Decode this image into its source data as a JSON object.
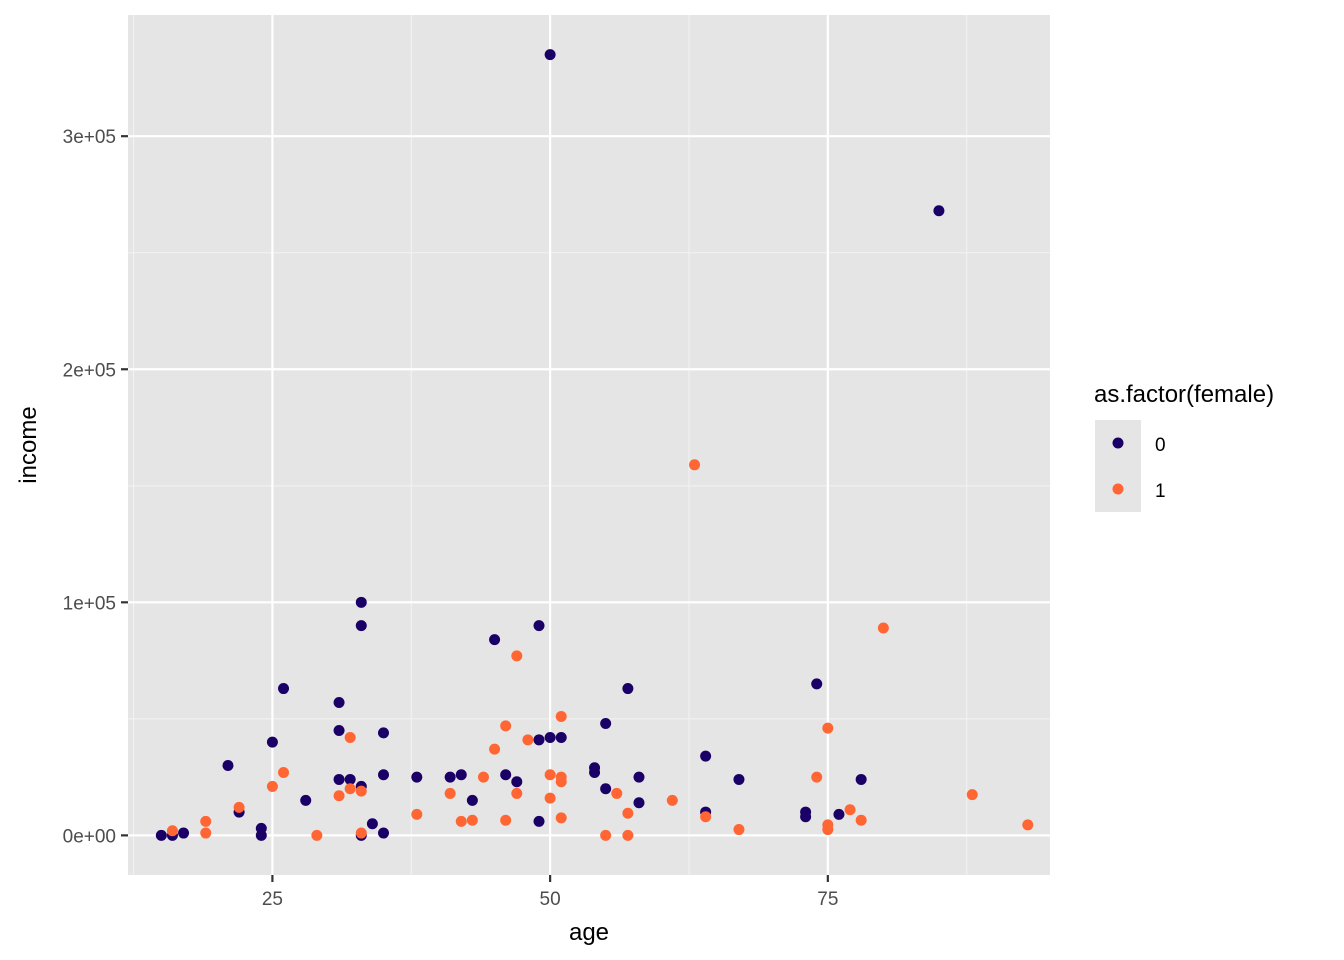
{
  "chart_data": {
    "type": "scatter",
    "xlabel": "age",
    "ylabel": "income",
    "xlim": [
      12,
      95
    ],
    "ylim": [
      -17000,
      352000
    ],
    "x_ticks": [
      25,
      50,
      75
    ],
    "x_tick_labels": [
      "25",
      "50",
      "75"
    ],
    "x_minor_ticks": [
      12.5,
      37.5,
      62.5,
      87.5
    ],
    "y_ticks": [
      0,
      100000,
      200000,
      300000
    ],
    "y_tick_labels": [
      "0e+00",
      "1e+05",
      "2e+05",
      "3e+05"
    ],
    "y_minor_ticks": [
      50000,
      150000,
      250000
    ],
    "grid": true,
    "legend": {
      "title": "as.factor(female)",
      "placement": "right"
    },
    "series": [
      {
        "name": "0",
        "color": "#1a0066",
        "points": [
          [
            15,
            0
          ],
          [
            16,
            0
          ],
          [
            17,
            1000
          ],
          [
            21,
            30000
          ],
          [
            22,
            10000
          ],
          [
            24,
            3000
          ],
          [
            24,
            0
          ],
          [
            25,
            40000
          ],
          [
            26,
            63000
          ],
          [
            28,
            15000
          ],
          [
            31,
            57000
          ],
          [
            31,
            45000
          ],
          [
            31,
            24000
          ],
          [
            32,
            24000
          ],
          [
            33,
            100000
          ],
          [
            33,
            90000
          ],
          [
            33,
            21000
          ],
          [
            33,
            0
          ],
          [
            34,
            5000
          ],
          [
            35,
            44000
          ],
          [
            35,
            26000
          ],
          [
            35,
            1000
          ],
          [
            38,
            25000
          ],
          [
            41,
            25000
          ],
          [
            42,
            26000
          ],
          [
            43,
            15000
          ],
          [
            45,
            84000
          ],
          [
            46,
            26000
          ],
          [
            47,
            23000
          ],
          [
            49,
            90000
          ],
          [
            49,
            41000
          ],
          [
            49,
            6000
          ],
          [
            50,
            335000
          ],
          [
            50,
            42000
          ],
          [
            51,
            42000
          ],
          [
            54,
            29000
          ],
          [
            54,
            27000
          ],
          [
            55,
            48000
          ],
          [
            55,
            20000
          ],
          [
            57,
            63000
          ],
          [
            58,
            25000
          ],
          [
            58,
            14000
          ],
          [
            64,
            34000
          ],
          [
            64,
            10000
          ],
          [
            67,
            24000
          ],
          [
            73,
            10000
          ],
          [
            73,
            8000
          ],
          [
            74,
            65000
          ],
          [
            76,
            9000
          ],
          [
            78,
            24000
          ],
          [
            85,
            268000
          ]
        ]
      },
      {
        "name": "1",
        "color": "#ff6633",
        "points": [
          [
            16,
            2000
          ],
          [
            19,
            6000
          ],
          [
            19,
            1000
          ],
          [
            22,
            12000
          ],
          [
            25,
            21000
          ],
          [
            26,
            27000
          ],
          [
            29,
            0
          ],
          [
            31,
            17000
          ],
          [
            32,
            42000
          ],
          [
            32,
            20000
          ],
          [
            33,
            19000
          ],
          [
            33,
            1000
          ],
          [
            38,
            9000
          ],
          [
            41,
            18000
          ],
          [
            42,
            6000
          ],
          [
            43,
            6500
          ],
          [
            44,
            25000
          ],
          [
            45,
            37000
          ],
          [
            46,
            47000
          ],
          [
            46,
            6500
          ],
          [
            47,
            77000
          ],
          [
            47,
            18000
          ],
          [
            48,
            41000
          ],
          [
            50,
            26000
          ],
          [
            50,
            16000
          ],
          [
            51,
            51000
          ],
          [
            51,
            25000
          ],
          [
            51,
            23000
          ],
          [
            51,
            7500
          ],
          [
            55,
            0
          ],
          [
            56,
            18000
          ],
          [
            57,
            9500
          ],
          [
            57,
            0
          ],
          [
            61,
            15000
          ],
          [
            63,
            159000
          ],
          [
            64,
            8000
          ],
          [
            67,
            2500
          ],
          [
            74,
            25000
          ],
          [
            75,
            46000
          ],
          [
            75,
            4500
          ],
          [
            75,
            2500
          ],
          [
            77,
            11000
          ],
          [
            78,
            6500
          ],
          [
            80,
            89000
          ],
          [
            88,
            17500
          ],
          [
            93,
            4500
          ]
        ]
      }
    ]
  }
}
